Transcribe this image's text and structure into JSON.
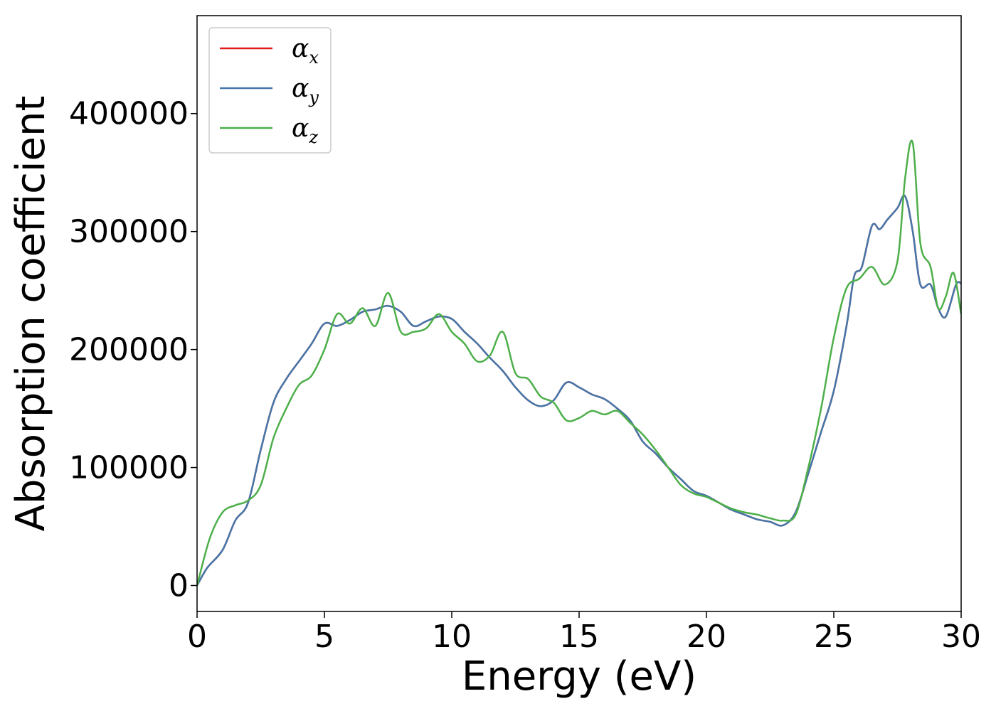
{
  "chart_data": {
    "type": "line",
    "title": "",
    "xlabel": "Energy (eV)",
    "ylabel": "Absorption coefficient",
    "xlim": [
      0,
      30
    ],
    "ylim": [
      -22000,
      483000
    ],
    "xticks": [
      0,
      5,
      10,
      15,
      20,
      25,
      30
    ],
    "yticks": [
      0,
      100000,
      200000,
      300000,
      400000
    ],
    "grid": false,
    "legend_position": "upper-left",
    "series": [
      {
        "name": "α",
        "subscript": "x",
        "color": "#e41a1c",
        "x": [
          0,
          0.4,
          1,
          1.5,
          2,
          2.5,
          3,
          3.5,
          4,
          4.5,
          5,
          5.5,
          6,
          6.5,
          7,
          7.5,
          8,
          8.5,
          9,
          9.5,
          10,
          10.5,
          11,
          11.5,
          12,
          12.5,
          13,
          13.5,
          14,
          14.5,
          15,
          15.5,
          16,
          16.5,
          17,
          17.5,
          18,
          18.5,
          19,
          19.5,
          20,
          20.5,
          21,
          21.5,
          22,
          22.5,
          23,
          23.5,
          24,
          24.5,
          25,
          25.5,
          25.8,
          26.1,
          26.5,
          26.8,
          27.1,
          27.5,
          27.8,
          28.1,
          28.4,
          28.8,
          29.1,
          29.4,
          29.8,
          30
        ],
        "y": [
          0,
          15000,
          30000,
          55000,
          70000,
          115000,
          155000,
          175000,
          190000,
          205000,
          222000,
          220000,
          225000,
          232000,
          234000,
          237000,
          232000,
          220000,
          224000,
          228000,
          226000,
          215000,
          205000,
          193000,
          182000,
          168000,
          157000,
          152000,
          157000,
          172000,
          168000,
          162000,
          158000,
          150000,
          140000,
          122000,
          112000,
          100000,
          90000,
          80000,
          76000,
          70000,
          64000,
          60000,
          56000,
          54000,
          51000,
          62000,
          95000,
          130000,
          165000,
          220000,
          262000,
          270000,
          305000,
          302000,
          310000,
          320000,
          330000,
          300000,
          255000,
          255000,
          235000,
          228000,
          255000,
          256000
        ]
      },
      {
        "name": "α",
        "subscript": "y",
        "color": "#4477aa",
        "x": [
          0,
          0.4,
          1,
          1.5,
          2,
          2.5,
          3,
          3.5,
          4,
          4.5,
          5,
          5.5,
          6,
          6.5,
          7,
          7.5,
          8,
          8.5,
          9,
          9.5,
          10,
          10.5,
          11,
          11.5,
          12,
          12.5,
          13,
          13.5,
          14,
          14.5,
          15,
          15.5,
          16,
          16.5,
          17,
          17.5,
          18,
          18.5,
          19,
          19.5,
          20,
          20.5,
          21,
          21.5,
          22,
          22.5,
          23,
          23.5,
          24,
          24.5,
          25,
          25.5,
          25.8,
          26.1,
          26.5,
          26.8,
          27.1,
          27.5,
          27.8,
          28.1,
          28.4,
          28.8,
          29.1,
          29.4,
          29.8,
          30
        ],
        "y": [
          0,
          15000,
          30000,
          55000,
          70000,
          115000,
          155000,
          175000,
          190000,
          205000,
          222000,
          220000,
          225000,
          232000,
          234000,
          237000,
          232000,
          220000,
          224000,
          228000,
          226000,
          215000,
          205000,
          193000,
          182000,
          168000,
          157000,
          152000,
          157000,
          172000,
          168000,
          162000,
          158000,
          150000,
          140000,
          122000,
          112000,
          100000,
          90000,
          80000,
          76000,
          70000,
          64000,
          60000,
          56000,
          54000,
          51000,
          62000,
          95000,
          130000,
          165000,
          220000,
          262000,
          270000,
          305000,
          302000,
          310000,
          320000,
          330000,
          300000,
          255000,
          255000,
          235000,
          228000,
          255000,
          256000
        ]
      },
      {
        "name": "α",
        "subscript": "z",
        "color": "#4daf4a",
        "x": [
          0,
          0.5,
          1,
          1.5,
          2,
          2.5,
          3,
          3.5,
          4,
          4.5,
          5,
          5.5,
          6,
          6.5,
          7,
          7.5,
          8,
          8.5,
          9,
          9.5,
          10,
          10.5,
          11,
          11.5,
          12,
          12.5,
          13,
          13.5,
          14,
          14.5,
          15,
          15.5,
          16,
          16.5,
          17,
          17.5,
          18,
          18.5,
          19,
          19.5,
          20,
          20.5,
          21,
          21.5,
          22,
          22.5,
          23,
          23.5,
          24,
          24.5,
          25,
          25.5,
          26,
          26.5,
          27,
          27.5,
          27.8,
          28.1,
          28.4,
          28.8,
          29.1,
          29.4,
          29.7,
          30
        ],
        "y": [
          0,
          40000,
          62000,
          68000,
          72000,
          85000,
          125000,
          150000,
          170000,
          178000,
          200000,
          230000,
          222000,
          235000,
          220000,
          248000,
          215000,
          215000,
          218000,
          230000,
          215000,
          205000,
          190000,
          195000,
          215000,
          180000,
          175000,
          160000,
          155000,
          140000,
          142000,
          148000,
          145000,
          148000,
          138000,
          128000,
          115000,
          100000,
          85000,
          78000,
          75000,
          70000,
          65000,
          62000,
          60000,
          57000,
          55000,
          60000,
          100000,
          150000,
          210000,
          252000,
          260000,
          270000,
          255000,
          275000,
          345000,
          375000,
          290000,
          270000,
          235000,
          245000,
          265000,
          230000
        ]
      }
    ]
  }
}
